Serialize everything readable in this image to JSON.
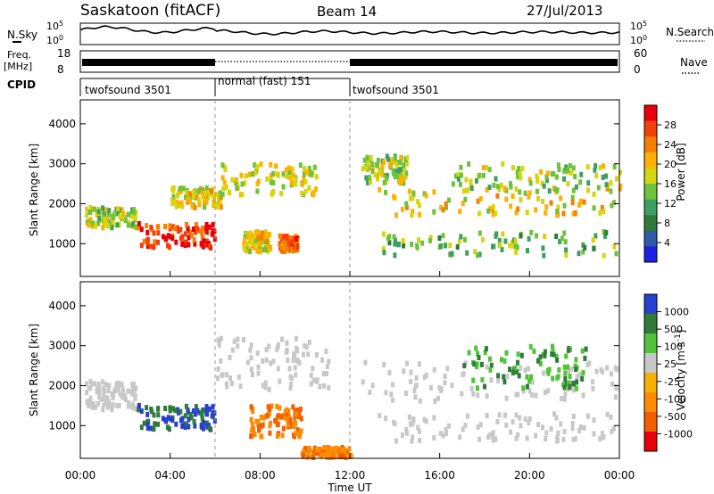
{
  "header": {
    "station": "Saskatoon (fitACF)",
    "beam": "Beam 14",
    "date": "27/Jul/2013"
  },
  "side_labels": {
    "nsky": "N.Sky",
    "nsearch": "N.Search",
    "freq": "Freq.",
    "freq_unit": "[MHz]",
    "nave": "Nave",
    "cpid": "CPID"
  },
  "noise_ticks": {
    "left_hi": "10^5",
    "left_lo": "10^0",
    "right_hi": "10^5",
    "right_lo": "10^0"
  },
  "freq_ticks": {
    "left_hi": "18",
    "left_lo": "8",
    "right_hi": "60",
    "right_lo": "0"
  },
  "cpid_segments": [
    {
      "label": "twofsound 3501",
      "start": 0,
      "end": 6
    },
    {
      "label": "normal (fast) 151",
      "start": 6,
      "end": 12
    },
    {
      "label": "twofsound 3501",
      "start": 12,
      "end": 24
    }
  ],
  "chart_data": [
    {
      "type": "heatmap",
      "name": "power",
      "ylabel": "Slant Range [km]",
      "xlabel": "Time UT",
      "xlim": [
        0,
        24
      ],
      "ylim": [
        180,
        4600
      ],
      "yticks": [
        "1000",
        "2000",
        "3000",
        "4000"
      ],
      "xticks": [
        "00:00",
        "04:00",
        "08:00",
        "12:00",
        "16:00",
        "20:00",
        "00:00"
      ],
      "colorbar_label": "Power [dB]",
      "colorbar_ticks": [
        "28",
        "24",
        "20",
        "16",
        "12",
        "8",
        "4"
      ],
      "colorbar_colors": [
        "#e8000b",
        "#f3400a",
        "#f67e00",
        "#ffb000",
        "#d6d60c",
        "#6fc23a",
        "#3e9f62",
        "#2f7b3a",
        "#2d5ba9",
        "#1c20e6"
      ],
      "echo_bands": [
        {
          "t": [
            0.2,
            2.5
          ],
          "r": [
            1400,
            1900
          ],
          "level": 0.5
        },
        {
          "t": [
            2.5,
            6.0
          ],
          "r": [
            900,
            1500
          ],
          "level": 0.9
        },
        {
          "t": [
            4.0,
            6.2
          ],
          "r": [
            1900,
            2400
          ],
          "level": 0.6
        },
        {
          "t": [
            6.2,
            10.5
          ],
          "r": [
            2200,
            3000
          ],
          "level": 0.55
        },
        {
          "t": [
            7.2,
            8.4
          ],
          "r": [
            800,
            1300
          ],
          "level": 0.6
        },
        {
          "t": [
            8.8,
            9.6
          ],
          "r": [
            800,
            1200
          ],
          "level": 0.85
        },
        {
          "t": [
            12.5,
            14.5
          ],
          "r": [
            2500,
            3200
          ],
          "level": 0.5
        },
        {
          "t": [
            13.0,
            24.0
          ],
          "r": [
            1700,
            2400
          ],
          "level": 0.6
        },
        {
          "t": [
            16.5,
            24.0
          ],
          "r": [
            2300,
            3000
          ],
          "level": 0.5
        },
        {
          "t": [
            13.0,
            24.0
          ],
          "r": [
            700,
            1300
          ],
          "level": 0.4
        }
      ]
    },
    {
      "type": "heatmap",
      "name": "velocity",
      "ylabel": "Slant Range [km]",
      "xlabel": "Time UT",
      "xlim": [
        0,
        24
      ],
      "ylim": [
        180,
        4600
      ],
      "yticks": [
        "1000",
        "2000",
        "3000",
        "4000"
      ],
      "xticks": [
        "00:00",
        "04:00",
        "08:00",
        "12:00",
        "16:00",
        "20:00",
        "00:00"
      ],
      "colorbar_label": "Velocity [m s^-1]",
      "colorbar_ticks": [
        "1000",
        "500",
        "100",
        "25",
        "-25",
        "-100",
        "-500",
        "-1000"
      ],
      "colorbar_colors": [
        "#2640d0",
        "#2f7b3a",
        "#52c23a",
        "#c8c8c8",
        "#f6b000",
        "#ff8c00",
        "#f25f00",
        "#e8000b"
      ],
      "echo_bands": [
        {
          "t": [
            0.2,
            2.5
          ],
          "r": [
            1400,
            2100
          ],
          "class": "gray"
        },
        {
          "t": [
            2.5,
            6.0
          ],
          "r": [
            900,
            1500
          ],
          "class": "blue"
        },
        {
          "t": [
            6.0,
            11.0
          ],
          "r": [
            1900,
            3200
          ],
          "class": "gray"
        },
        {
          "t": [
            7.5,
            9.8
          ],
          "r": [
            700,
            1500
          ],
          "class": "orange"
        },
        {
          "t": [
            9.8,
            12.0
          ],
          "r": [
            200,
            450
          ],
          "class": "orange"
        },
        {
          "t": [
            12.5,
            24.0
          ],
          "r": [
            1600,
            2600
          ],
          "class": "gray"
        },
        {
          "t": [
            17.0,
            22.5
          ],
          "r": [
            1900,
            3000
          ],
          "class": "green"
        },
        {
          "t": [
            13.0,
            24.0
          ],
          "r": [
            600,
            1300
          ],
          "class": "gray"
        }
      ]
    }
  ]
}
